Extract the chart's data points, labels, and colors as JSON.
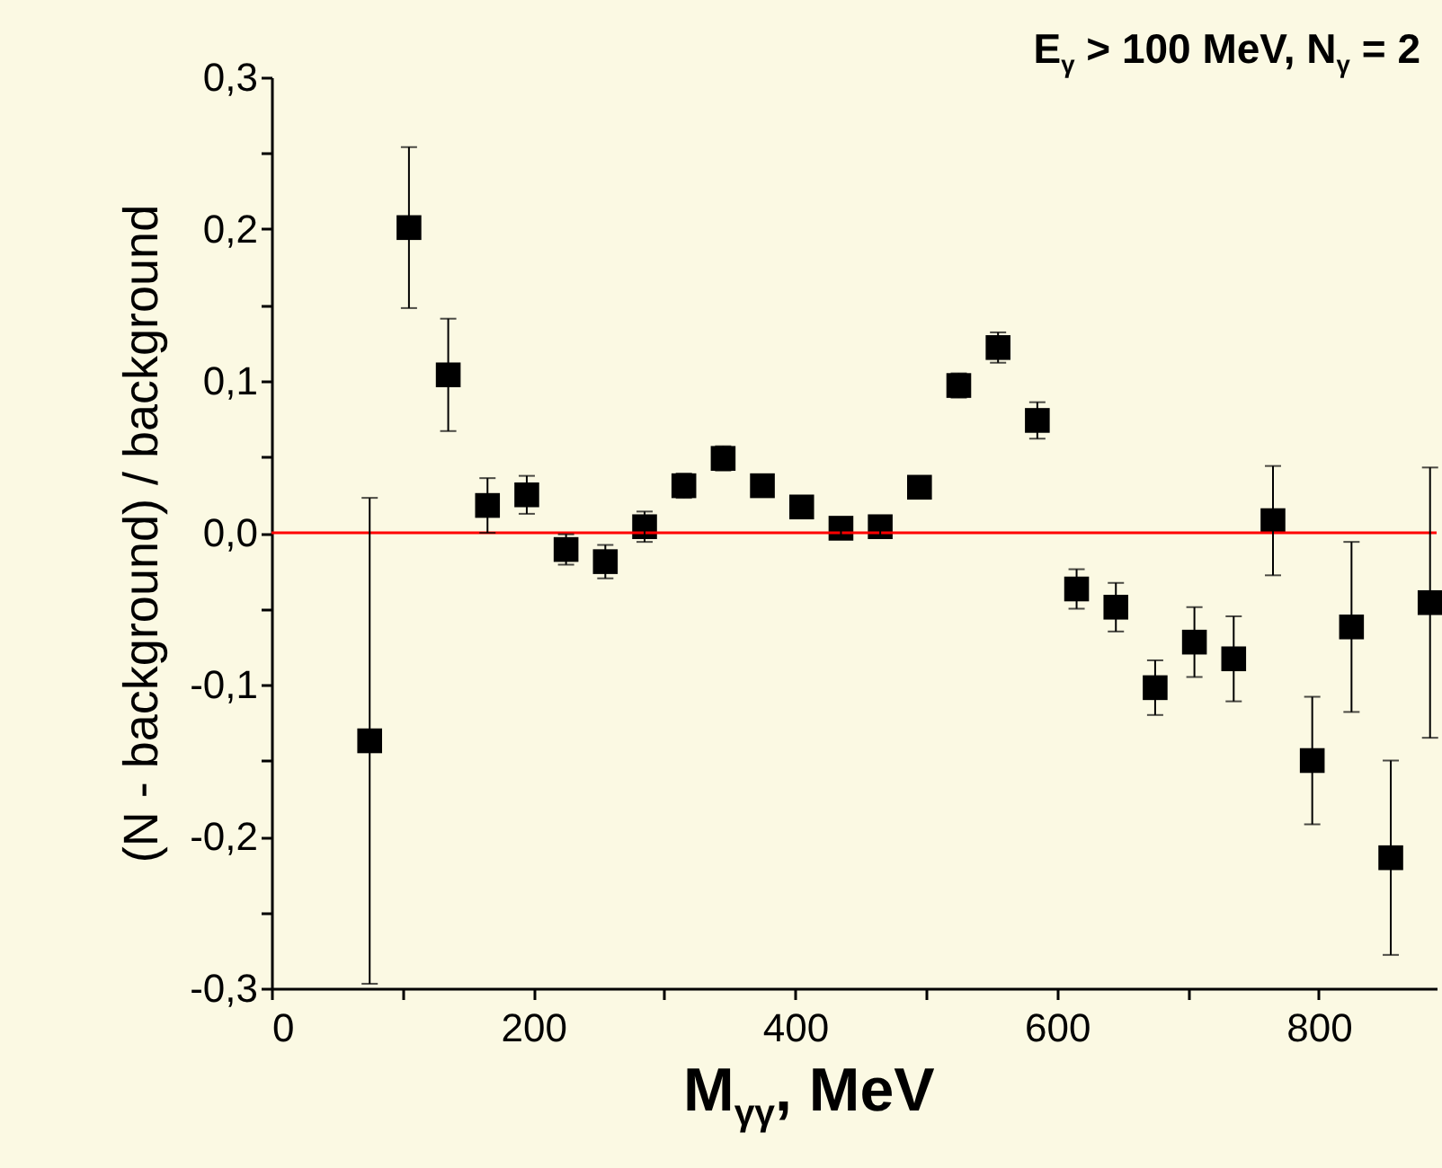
{
  "chart_data": {
    "type": "scatter",
    "xlabel": "M$_{γγ}$,  MeV",
    "ylabel": "(N - background) / background",
    "annotations": [
      "E$_{γ}$ > 100 MeV,  N$_{γ}$ = 2"
    ],
    "x": [
      75,
      105,
      135,
      165,
      195,
      225,
      255,
      285,
      315,
      345,
      375,
      405,
      435,
      465,
      495,
      525,
      555,
      585,
      615,
      645,
      675,
      705,
      735,
      765,
      795,
      825,
      855,
      885
    ],
    "series": [
      {
        "color": "#000000",
        "values": [
          -0.137,
          0.201,
          0.104,
          0.018,
          0.025,
          -0.011,
          -0.019,
          0.004,
          0.031,
          0.049,
          0.031,
          0.017,
          0.003,
          0.004,
          0.03,
          0.097,
          0.122,
          0.074,
          -0.037,
          -0.049,
          -0.102,
          -0.072,
          -0.083,
          0.008,
          -0.15,
          -0.062,
          -0.214,
          -0.046
        ],
        "errors": [
          0.16,
          0.053,
          0.037,
          0.018,
          0.0125,
          0.01,
          0.011,
          0.01,
          0.008,
          0.008,
          0.007,
          0.006,
          0.005,
          0.006,
          0.007,
          0.008,
          0.01,
          0.012,
          0.013,
          0.016,
          0.018,
          0.023,
          0.028,
          0.036,
          0.042,
          0.056,
          0.064,
          0.089
        ]
      }
    ],
    "marker": "square",
    "xlim": [
      0,
      890
    ],
    "xticks": [
      0,
      {
        "value": 100,
        "label": null
      },
      200,
      {
        "value": 300,
        "label": null
      },
      400,
      {
        "value": 500,
        "label": null
      },
      600,
      {
        "value": 700,
        "label": null
      },
      800
    ],
    "ylim": [
      -0.3,
      0.3
    ],
    "yticks": [
      {
        "value": -0.3,
        "label": "-0,3"
      },
      {
        "value": -0.25,
        "label": null
      },
      {
        "value": -0.2,
        "label": "-0,2"
      },
      {
        "value": -0.15,
        "label": null
      },
      {
        "value": -0.1,
        "label": "-0,1"
      },
      {
        "value": -0.05,
        "label": null
      },
      {
        "value": 0,
        "label": "0,0"
      },
      {
        "value": 0.05,
        "label": null
      },
      {
        "value": 0.1,
        "label": "0,1"
      },
      {
        "value": 0.15,
        "label": null
      },
      {
        "value": 0.2,
        "label": "0,2"
      },
      {
        "value": 0.25,
        "label": null
      },
      {
        "value": 0.3,
        "label": "0,3"
      }
    ],
    "ref_lines": [
      {
        "axis": "y",
        "value": 0,
        "color": "#ff0000"
      }
    ],
    "grid": false
  }
}
